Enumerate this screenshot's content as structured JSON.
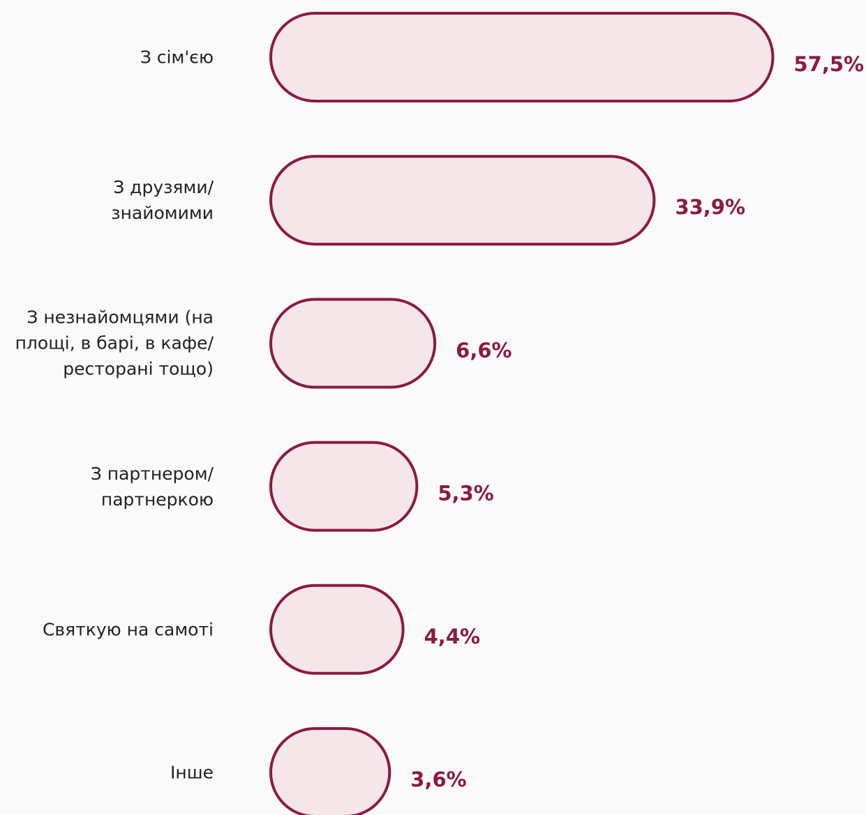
{
  "chart_data": {
    "type": "bar",
    "categories": [
      "З сім'єю",
      "З друзями/\nзнайомими",
      "З незнайомцями (на\nплощі, в барі, в кафе/\nресторані тощо)",
      "З партнером/\nпартнеркою",
      "Святкую на самоті",
      "Інше"
    ],
    "values": [
      57.5,
      33.9,
      6.6,
      5.3,
      4.4,
      3.6
    ],
    "value_labels": [
      "57,5%",
      "33,9%",
      "6,6%",
      "5,3%",
      "4,4%",
      "3,6%"
    ],
    "color": "#8b1a42"
  }
}
